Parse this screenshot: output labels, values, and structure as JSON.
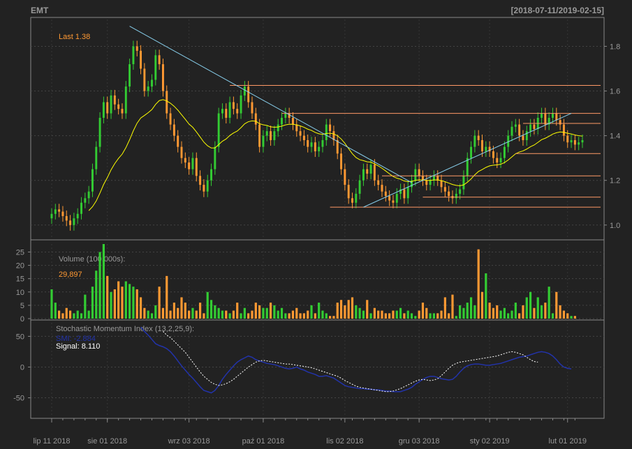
{
  "header": {
    "symbol": "EMT",
    "date_range": "[2018-07-11/2019-02-15]"
  },
  "colors": {
    "background": "#222222",
    "frame": "#888888",
    "grid": "#444444",
    "up": "#33cc33",
    "down": "#ff9933",
    "text": "#999999",
    "last_text": "#ff9933",
    "ema_line": "#ffff00",
    "trendline": "#87ceeb",
    "level_line": "#ff9966",
    "smi_line": "#2233aa",
    "signal_line": "#ffffff"
  },
  "chart_data": [
    {
      "type": "candlestick",
      "panel": "price",
      "last_label": "Last 1.38",
      "y_ticks": [
        "1.0",
        "1.2",
        "1.4",
        "1.6",
        "1.8"
      ],
      "ylim": [
        0.94,
        1.92
      ],
      "x_tick_labels": [
        "lip 11 2018",
        "sie 01 2018",
        "wrz 03 2018",
        "paź 01 2018",
        "lis 02 2018",
        "gru 03 2018",
        "sty 02 2019",
        "lut 01 2019"
      ],
      "x_tick_index": [
        0,
        15,
        37,
        57,
        79,
        99,
        118,
        139
      ],
      "closes": [
        1.05,
        1.07,
        1.06,
        1.04,
        1.02,
        1.0,
        1.03,
        1.05,
        1.1,
        1.12,
        1.15,
        1.25,
        1.35,
        1.48,
        1.55,
        1.5,
        1.58,
        1.54,
        1.52,
        1.5,
        1.62,
        1.72,
        1.8,
        1.78,
        1.7,
        1.6,
        1.62,
        1.65,
        1.76,
        1.72,
        1.6,
        1.5,
        1.45,
        1.4,
        1.35,
        1.3,
        1.28,
        1.25,
        1.3,
        1.22,
        1.18,
        1.15,
        1.2,
        1.25,
        1.35,
        1.5,
        1.52,
        1.48,
        1.55,
        1.52,
        1.5,
        1.58,
        1.62,
        1.55,
        1.5,
        1.45,
        1.35,
        1.4,
        1.42,
        1.38,
        1.42,
        1.45,
        1.48,
        1.5,
        1.48,
        1.45,
        1.42,
        1.4,
        1.38,
        1.35,
        1.37,
        1.33,
        1.35,
        1.38,
        1.45,
        1.42,
        1.38,
        1.32,
        1.25,
        1.18,
        1.12,
        1.1,
        1.14,
        1.2,
        1.25,
        1.23,
        1.27,
        1.2,
        1.18,
        1.15,
        1.13,
        1.11,
        1.1,
        1.14,
        1.16,
        1.12,
        1.17,
        1.2,
        1.25,
        1.22,
        1.2,
        1.18,
        1.2,
        1.22,
        1.2,
        1.17,
        1.15,
        1.13,
        1.12,
        1.14,
        1.16,
        1.22,
        1.3,
        1.35,
        1.4,
        1.38,
        1.33,
        1.35,
        1.33,
        1.3,
        1.28,
        1.3,
        1.35,
        1.4,
        1.44,
        1.45,
        1.4,
        1.38,
        1.42,
        1.45,
        1.43,
        1.48,
        1.5,
        1.45,
        1.48,
        1.5,
        1.47,
        1.45,
        1.4,
        1.37,
        1.38,
        1.36,
        1.37,
        1.38
      ],
      "ema_label": "",
      "trendlines": [
        {
          "from_index": 21,
          "from_value": 1.89,
          "to_index": 97,
          "to_value": 1.19
        },
        {
          "from_index": 84,
          "from_value": 1.08,
          "to_index": 140,
          "to_value": 1.5
        }
      ],
      "levels": [
        {
          "value": 1.625,
          "from_index": 48
        },
        {
          "value": 1.5,
          "from_index": 62
        },
        {
          "value": 1.455,
          "from_index": 127
        },
        {
          "value": 1.32,
          "from_index": 125
        },
        {
          "value": 1.22,
          "from_index": 89
        },
        {
          "value": 1.125,
          "from_index": 100
        },
        {
          "value": 1.08,
          "from_index": 75
        }
      ]
    },
    {
      "type": "bar",
      "panel": "volume",
      "label": "Volume (100,000s):",
      "last_value": "29,897",
      "y_ticks": [
        "0",
        "5",
        "10",
        "15",
        "20",
        "25"
      ],
      "ylim": [
        0,
        28
      ],
      "values": [
        11,
        6,
        3,
        2,
        4,
        3,
        2,
        3,
        2,
        9,
        3,
        12,
        18,
        25,
        28,
        16,
        10,
        11,
        14,
        12,
        14,
        13,
        12,
        11,
        8,
        4,
        3,
        2,
        5,
        12,
        4,
        16,
        3,
        6,
        4,
        8,
        6,
        3,
        4,
        3,
        6,
        2,
        10,
        7,
        5,
        4,
        3,
        3,
        2,
        3,
        6,
        2,
        4,
        2,
        3,
        6,
        5,
        4,
        4,
        6,
        5,
        3,
        4,
        2,
        2,
        3,
        4,
        2,
        2,
        3,
        5,
        2,
        6,
        3,
        2,
        1,
        1,
        6,
        7,
        5,
        7,
        8,
        5,
        4,
        3,
        7,
        2,
        4,
        3,
        3,
        2,
        2,
        3,
        3,
        4,
        2,
        3,
        2,
        1,
        3,
        6,
        4,
        2,
        2,
        2,
        3,
        8,
        2,
        9,
        1,
        5,
        4,
        6,
        8,
        5,
        26,
        10,
        17,
        6,
        4,
        5,
        3,
        4,
        2,
        3,
        6,
        2,
        5,
        8,
        10,
        4,
        8,
        5,
        6,
        12,
        2,
        10,
        5,
        3,
        2,
        1,
        1
      ]
    },
    {
      "type": "line",
      "panel": "smi",
      "label": "Stochastic Momentum Index (13,2,25,9):",
      "smi_label": "SMI: -2.884",
      "signal_label": "Signal: 8.110",
      "y_ticks": [
        "-50",
        "0",
        "50"
      ],
      "ylim": [
        -80,
        72
      ],
      "smi_start_index": 24,
      "smi": [
        65,
        58,
        52,
        45,
        38,
        35,
        33,
        30,
        25,
        18,
        10,
        2,
        -5,
        -12,
        -18,
        -25,
        -32,
        -38,
        -40,
        -42,
        -38,
        -30,
        -20,
        -12,
        -5,
        2,
        8,
        12,
        15,
        18,
        16,
        12,
        10,
        8,
        6,
        5,
        4,
        2,
        0,
        -2,
        -3,
        -2,
        0,
        -3,
        -5,
        -8,
        -10,
        -12,
        -15,
        -15,
        -14,
        -16,
        -18,
        -22,
        -26,
        -30,
        -32,
        -33,
        -34,
        -35,
        -35,
        -36,
        -36,
        -37,
        -37,
        -38,
        -39,
        -39,
        -40,
        -40,
        -40,
        -38,
        -36,
        -33,
        -28,
        -24,
        -20,
        -17,
        -15,
        -15,
        -17,
        -19,
        -20,
        -21,
        -20,
        -15,
        -8,
        -2,
        2,
        4,
        5,
        5,
        4,
        3,
        3,
        4,
        5,
        6,
        8,
        10,
        12,
        14,
        16,
        17,
        18,
        20,
        22,
        24,
        25,
        24,
        22,
        18,
        12,
        5,
        0,
        -2,
        -3
      ],
      "signal_start_index": 30,
      "signal": [
        58,
        52,
        48,
        42,
        36,
        30,
        24,
        16,
        8,
        0,
        -8,
        -15,
        -20,
        -25,
        -28,
        -30,
        -29,
        -27,
        -24,
        -20,
        -15,
        -10,
        -5,
        0,
        4,
        8,
        10,
        11,
        10,
        9,
        8,
        7,
        6,
        5,
        5,
        4,
        3,
        2,
        1,
        0,
        -1,
        -3,
        -5,
        -7,
        -9,
        -11,
        -13,
        -15,
        -18,
        -22,
        -25,
        -28,
        -31,
        -33,
        -34,
        -35,
        -36,
        -37,
        -38,
        -39,
        -40,
        -40,
        -39,
        -37,
        -35,
        -32,
        -29,
        -26,
        -23,
        -21,
        -20,
        -21,
        -22,
        -21,
        -19,
        -14,
        -8,
        -2,
        3,
        6,
        8,
        9,
        10,
        11,
        12,
        13,
        14,
        15,
        16,
        17,
        18,
        20,
        22,
        24,
        25,
        24,
        22,
        20,
        16,
        12,
        9,
        8
      ]
    }
  ]
}
